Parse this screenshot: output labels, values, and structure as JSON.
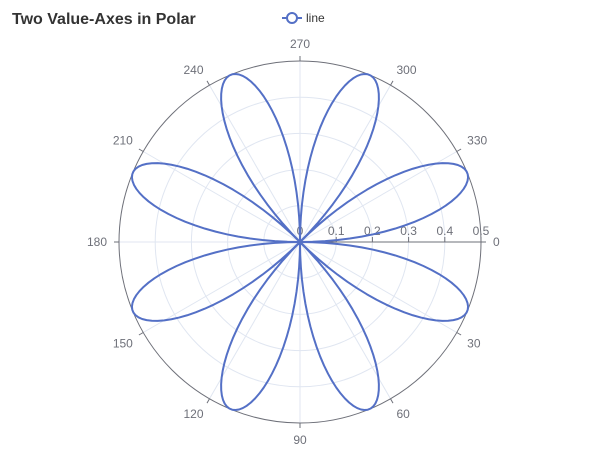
{
  "chart_data": {
    "type": "line",
    "coordinate_system": "polar",
    "title": "Two Value-Axes in Polar",
    "legend": {
      "entries": [
        "line"
      ],
      "placement": "top-center"
    },
    "angle_axis": {
      "type": "value",
      "min": 0,
      "max": 360,
      "start_angle": 0,
      "clockwise": true,
      "ticks": [
        0,
        30,
        60,
        90,
        120,
        150,
        180,
        210,
        240,
        270,
        300,
        330
      ],
      "tick_labels": [
        "0",
        "30",
        "60",
        "90",
        "120",
        "150",
        "180",
        "210",
        "240",
        "270",
        "300",
        "330"
      ]
    },
    "radius_axis": {
      "type": "value",
      "min": 0,
      "max": 0.5,
      "ticks": [
        0,
        0.1,
        0.2,
        0.3,
        0.4,
        0.5
      ],
      "tick_labels": [
        "0",
        "0.1",
        "0.2",
        "0.3",
        "0.4",
        "0.5"
      ],
      "split_lines": true
    },
    "series": [
      {
        "name": "line",
        "color": "#5470c6",
        "function": "r = |sin(2θ) · cos(2θ)|",
        "theta_step_deg": 1,
        "theta_range": [
          0,
          360
        ]
      }
    ]
  }
}
